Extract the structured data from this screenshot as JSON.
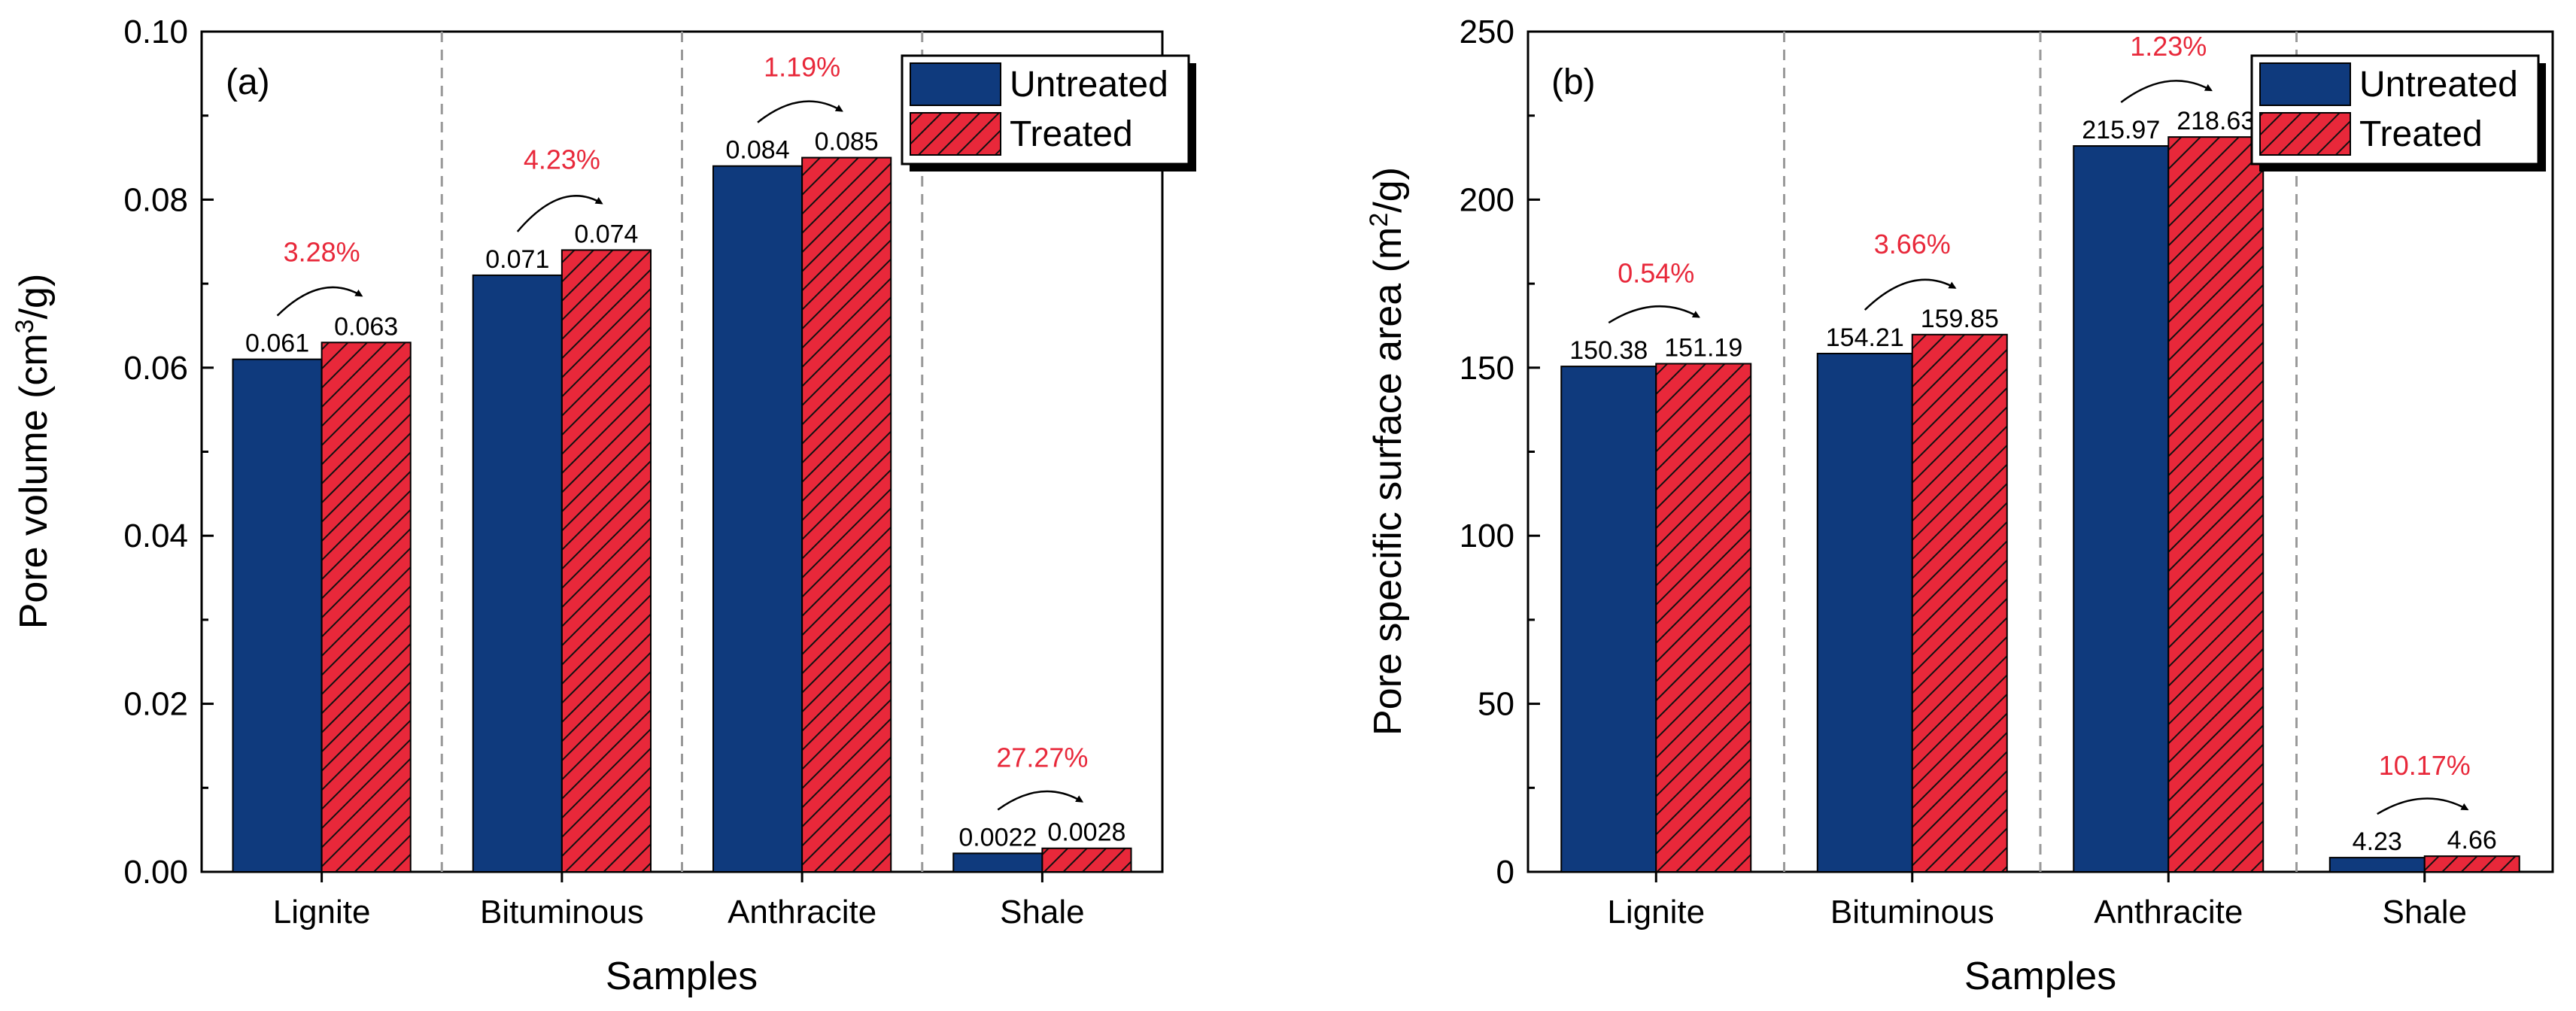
{
  "colors": {
    "untreated": "#0f3a7d",
    "treated": "#e8283a",
    "hatch": "#111111",
    "percent": "#e8283a",
    "axis": "#000000",
    "separator": "#9a9a9a"
  },
  "chart_data": [
    {
      "type": "bar",
      "panel_label": "(a)",
      "title": "",
      "xlabel": "Samples",
      "ylabel_main": "Pore volume (cm",
      "ylabel_sup": "3",
      "ylabel_tail": "/g)",
      "ylim": [
        0,
        0.1
      ],
      "yticks": [
        0.0,
        0.02,
        0.04,
        0.06,
        0.08,
        0.1
      ],
      "ytick_labels": [
        "0.00",
        "0.02",
        "0.04",
        "0.06",
        "0.08",
        "0.10"
      ],
      "categories": [
        "Lignite",
        "Bituminous",
        "Anthracite",
        "Shale"
      ],
      "series": [
        {
          "name": "Untreated",
          "values": [
            0.061,
            0.071,
            0.084,
            0.0022
          ],
          "labels": [
            "0.061",
            "0.071",
            "0.084",
            "0.0022"
          ]
        },
        {
          "name": "Treated",
          "values": [
            0.063,
            0.074,
            0.085,
            0.0028
          ],
          "labels": [
            "0.063",
            "0.074",
            "0.085",
            "0.0028"
          ]
        }
      ],
      "changes": [
        "3.28%",
        "4.23%",
        "1.19%",
        "27.27%"
      ],
      "legend_position": "top-right",
      "grid": false
    },
    {
      "type": "bar",
      "panel_label": "(b)",
      "title": "",
      "xlabel": "Samples",
      "ylabel_main": "Pore specific surface area (m",
      "ylabel_sup": "2",
      "ylabel_tail": "/g)",
      "ylim": [
        0,
        250
      ],
      "yticks": [
        0,
        50,
        100,
        150,
        200,
        250
      ],
      "ytick_labels": [
        "0",
        "50",
        "100",
        "150",
        "200",
        "250"
      ],
      "categories": [
        "Lignite",
        "Bituminous",
        "Anthracite",
        "Shale"
      ],
      "series": [
        {
          "name": "Untreated",
          "values": [
            150.38,
            154.21,
            215.97,
            4.23
          ],
          "labels": [
            "150.38",
            "154.21",
            "215.97",
            "4.23"
          ]
        },
        {
          "name": "Treated",
          "values": [
            151.19,
            159.85,
            218.63,
            4.66
          ],
          "labels": [
            "151.19",
            "159.85",
            "218.63",
            "4.66"
          ]
        }
      ],
      "changes": [
        "0.54%",
        "3.66%",
        "1.23%",
        "10.17%"
      ],
      "legend_position": "top-right",
      "grid": false
    }
  ]
}
